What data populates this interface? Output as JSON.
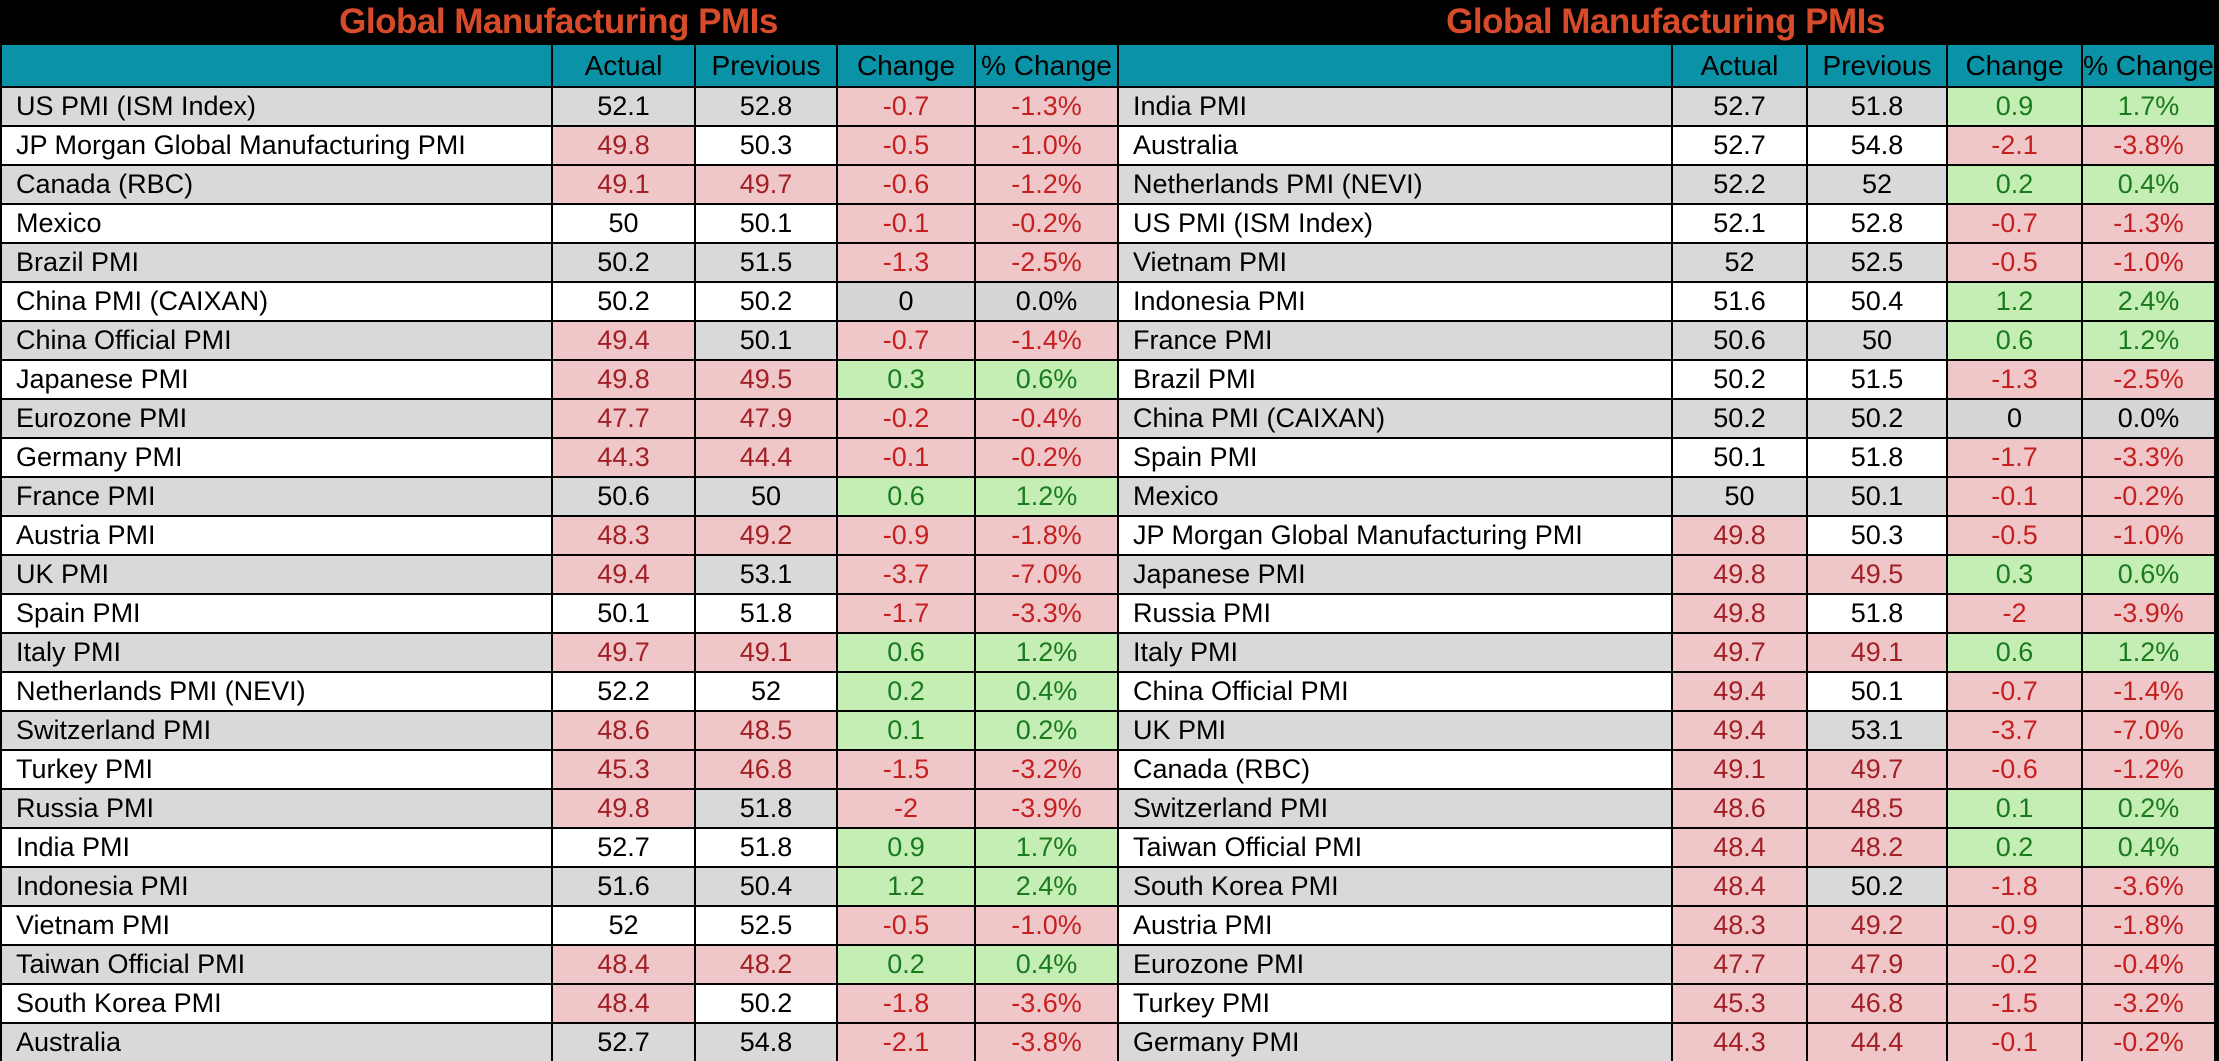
{
  "colors": {
    "title_text": "#d84b2a",
    "header_teal": "#0a92a6",
    "row_gray": "#d9d9d9",
    "zero_gray": "#d6d6d6",
    "pink_bg": "#f0c7c9",
    "red_level_text": "#a21f26",
    "red_change_text": "#c51f1f",
    "green_bg": "#c5eeb5",
    "green_text": "#1a7a1e",
    "title_bar_bg": "#000000"
  },
  "chart_data": [
    {
      "type": "table",
      "title": "Global Manufacturing PMIs",
      "columns": [
        "",
        "Actual",
        "Previous",
        "Change",
        "% Change"
      ],
      "rows": [
        [
          "US PMI (ISM Index)",
          "52.1",
          "52.8",
          "-0.7",
          "-1.3%"
        ],
        [
          "JP Morgan Global Manufacturing PMI",
          "49.8",
          "50.3",
          "-0.5",
          "-1.0%"
        ],
        [
          "Canada (RBC)",
          "49.1",
          "49.7",
          "-0.6",
          "-1.2%"
        ],
        [
          "Mexico",
          "50",
          "50.1",
          "-0.1",
          "-0.2%"
        ],
        [
          "Brazil PMI",
          "50.2",
          "51.5",
          "-1.3",
          "-2.5%"
        ],
        [
          "China PMI (CAIXAN)",
          "50.2",
          "50.2",
          "0",
          "0.0%"
        ],
        [
          "China Official PMI",
          "49.4",
          "50.1",
          "-0.7",
          "-1.4%"
        ],
        [
          "Japanese PMI",
          "49.8",
          "49.5",
          "0.3",
          "0.6%"
        ],
        [
          "Eurozone PMI",
          "47.7",
          "47.9",
          "-0.2",
          "-0.4%"
        ],
        [
          "Germany PMI",
          "44.3",
          "44.4",
          "-0.1",
          "-0.2%"
        ],
        [
          "France PMI",
          "50.6",
          "50",
          "0.6",
          "1.2%"
        ],
        [
          "Austria PMI",
          "48.3",
          "49.2",
          "-0.9",
          "-1.8%"
        ],
        [
          "UK PMI",
          "49.4",
          "53.1",
          "-3.7",
          "-7.0%"
        ],
        [
          "Spain PMI",
          "50.1",
          "51.8",
          "-1.7",
          "-3.3%"
        ],
        [
          "Italy PMI",
          "49.7",
          "49.1",
          "0.6",
          "1.2%"
        ],
        [
          "Netherlands PMI (NEVI)",
          "52.2",
          "52",
          "0.2",
          "0.4%"
        ],
        [
          "Switzerland PMI",
          "48.6",
          "48.5",
          "0.1",
          "0.2%"
        ],
        [
          "Turkey PMI",
          "45.3",
          "46.8",
          "-1.5",
          "-3.2%"
        ],
        [
          "Russia PMI",
          "49.8",
          "51.8",
          "-2",
          "-3.9%"
        ],
        [
          "India PMI",
          "52.7",
          "51.8",
          "0.9",
          "1.7%"
        ],
        [
          "Indonesia PMI",
          "51.6",
          "50.4",
          "1.2",
          "2.4%"
        ],
        [
          "Vietnam PMI",
          "52",
          "52.5",
          "-0.5",
          "-1.0%"
        ],
        [
          "Taiwan Official PMI",
          "48.4",
          "48.2",
          "0.2",
          "0.4%"
        ],
        [
          "South Korea PMI",
          "48.4",
          "50.2",
          "-1.8",
          "-3.6%"
        ],
        [
          "Australia",
          "52.7",
          "54.8",
          "-2.1",
          "-3.8%"
        ]
      ]
    },
    {
      "type": "table",
      "title": "Global Manufacturing PMIs",
      "columns": [
        "",
        "Actual",
        "Previous",
        "Change",
        "% Change"
      ],
      "rows": [
        [
          "India PMI",
          "52.7",
          "51.8",
          "0.9",
          "1.7%"
        ],
        [
          "Australia",
          "52.7",
          "54.8",
          "-2.1",
          "-3.8%"
        ],
        [
          "Netherlands PMI (NEVI)",
          "52.2",
          "52",
          "0.2",
          "0.4%"
        ],
        [
          "US PMI (ISM Index)",
          "52.1",
          "52.8",
          "-0.7",
          "-1.3%"
        ],
        [
          "Vietnam PMI",
          "52",
          "52.5",
          "-0.5",
          "-1.0%"
        ],
        [
          "Indonesia PMI",
          "51.6",
          "50.4",
          "1.2",
          "2.4%"
        ],
        [
          "France PMI",
          "50.6",
          "50",
          "0.6",
          "1.2%"
        ],
        [
          "Brazil PMI",
          "50.2",
          "51.5",
          "-1.3",
          "-2.5%"
        ],
        [
          "China PMI (CAIXAN)",
          "50.2",
          "50.2",
          "0",
          "0.0%"
        ],
        [
          "Spain PMI",
          "50.1",
          "51.8",
          "-1.7",
          "-3.3%"
        ],
        [
          "Mexico",
          "50",
          "50.1",
          "-0.1",
          "-0.2%"
        ],
        [
          "JP Morgan Global Manufacturing PMI",
          "49.8",
          "50.3",
          "-0.5",
          "-1.0%"
        ],
        [
          "Japanese PMI",
          "49.8",
          "49.5",
          "0.3",
          "0.6%"
        ],
        [
          "Russia PMI",
          "49.8",
          "51.8",
          "-2",
          "-3.9%"
        ],
        [
          "Italy PMI",
          "49.7",
          "49.1",
          "0.6",
          "1.2%"
        ],
        [
          "China Official PMI",
          "49.4",
          "50.1",
          "-0.7",
          "-1.4%"
        ],
        [
          "UK PMI",
          "49.4",
          "53.1",
          "-3.7",
          "-7.0%"
        ],
        [
          "Canada (RBC)",
          "49.1",
          "49.7",
          "-0.6",
          "-1.2%"
        ],
        [
          "Switzerland PMI",
          "48.6",
          "48.5",
          "0.1",
          "0.2%"
        ],
        [
          "Taiwan Official PMI",
          "48.4",
          "48.2",
          "0.2",
          "0.4%"
        ],
        [
          "South Korea PMI",
          "48.4",
          "50.2",
          "-1.8",
          "-3.6%"
        ],
        [
          "Austria PMI",
          "48.3",
          "49.2",
          "-0.9",
          "-1.8%"
        ],
        [
          "Eurozone PMI",
          "47.7",
          "47.9",
          "-0.2",
          "-0.4%"
        ],
        [
          "Turkey PMI",
          "45.3",
          "46.8",
          "-1.5",
          "-3.2%"
        ],
        [
          "Germany PMI",
          "44.3",
          "44.4",
          "-0.1",
          "-0.2%"
        ]
      ]
    }
  ]
}
